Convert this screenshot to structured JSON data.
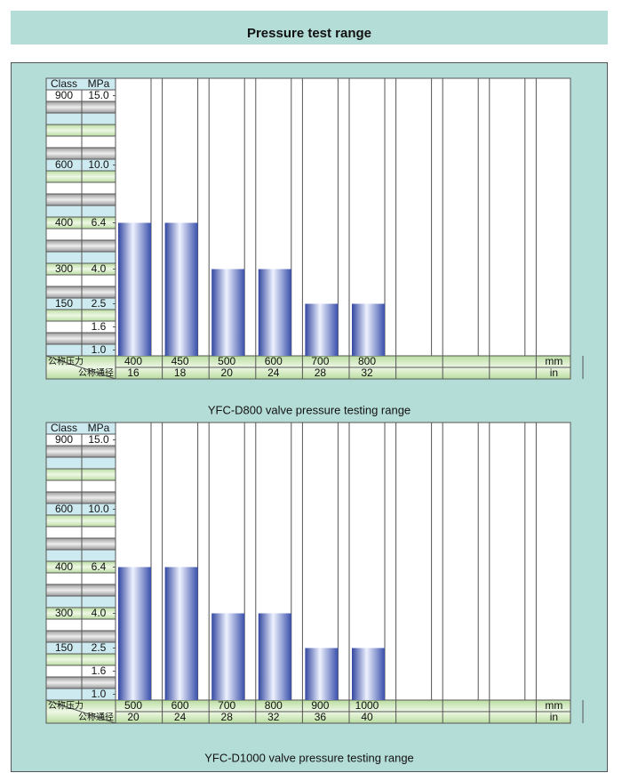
{
  "title": "Pressure test range",
  "chart_data": [
    {
      "type": "bar",
      "header": [
        "Class",
        "MPa"
      ],
      "ytick_classes": [
        900,
        null,
        null,
        null,
        null,
        null,
        600,
        null,
        null,
        null,
        null,
        400,
        null,
        null,
        null,
        300,
        null,
        null,
        150,
        null,
        null,
        null,
        null
      ],
      "yticks": [
        {
          "value": 15,
          "label": "15.0"
        },
        null,
        null,
        null,
        null,
        null,
        {
          "value": 10,
          "label": "10.0"
        },
        null,
        null,
        null,
        null,
        6.4,
        null,
        null,
        null,
        {
          "value": 4,
          "label": "4.0"
        },
        null,
        null,
        2.5,
        null,
        1.6,
        null,
        {
          "value": 1,
          "label": "1.0"
        }
      ],
      "row_labels": [
        "公称压力",
        "公称通径"
      ],
      "categories": [
        400,
        450,
        500,
        600,
        700,
        800
      ],
      "categories_in": [
        16,
        18,
        20,
        24,
        28,
        32
      ],
      "values": [
        6.4,
        6.4,
        4,
        4,
        2.5,
        2.5
      ],
      "units": [
        "mm",
        "in"
      ],
      "caption": "YFC-D800 valve pressure testing range"
    },
    {
      "type": "bar",
      "header": [
        "Class",
        "MPa"
      ],
      "ytick_classes": [
        900,
        null,
        null,
        null,
        null,
        null,
        600,
        null,
        null,
        null,
        null,
        400,
        null,
        null,
        null,
        300,
        null,
        null,
        150,
        null,
        null,
        null,
        null
      ],
      "yticks": [
        {
          "value": 15,
          "label": "15.0"
        },
        null,
        null,
        null,
        null,
        null,
        {
          "value": 10,
          "label": "10.0"
        },
        null,
        null,
        null,
        null,
        6.4,
        null,
        null,
        null,
        {
          "value": 4,
          "label": "4.0"
        },
        null,
        null,
        2.5,
        null,
        1.6,
        null,
        {
          "value": 1,
          "label": "1.0"
        }
      ],
      "row_labels": [
        "公称压力",
        "公称通径"
      ],
      "categories": [
        500,
        600,
        700,
        800,
        900,
        1000
      ],
      "categories_in": [
        20,
        24,
        28,
        32,
        36,
        40
      ],
      "values": [
        6.4,
        6.4,
        4,
        4,
        2.5,
        2.5
      ],
      "units": [
        "mm",
        "in"
      ],
      "caption": "YFC-D1000 valve pressure testing range"
    }
  ]
}
